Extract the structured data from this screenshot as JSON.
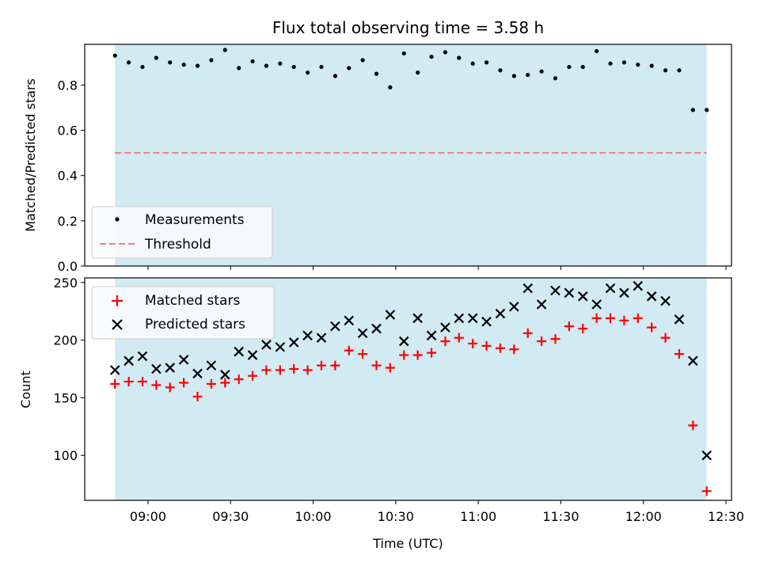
{
  "chart_data": [
    {
      "type": "scatter",
      "title": "Flux total observing time = 3.58 h",
      "xlabel": "",
      "ylabel": "Matched/Predicted stars",
      "ylim": [
        0,
        0.98
      ],
      "yticks": [
        "0.0",
        "0.2",
        "0.4",
        "0.6",
        "0.8"
      ],
      "xlim_minutes": [
        517,
        752
      ],
      "x": [
        "08:48",
        "08:53",
        "08:58",
        "09:03",
        "09:08",
        "09:13",
        "09:18",
        "09:23",
        "09:28",
        "09:33",
        "09:38",
        "09:43",
        "09:48",
        "09:53",
        "09:58",
        "10:03",
        "10:08",
        "10:13",
        "10:18",
        "10:23",
        "10:28",
        "10:33",
        "10:38",
        "10:43",
        "10:48",
        "10:53",
        "10:58",
        "11:03",
        "11:08",
        "11:13",
        "11:18",
        "11:23",
        "11:28",
        "11:33",
        "11:38",
        "11:43",
        "11:48",
        "11:53",
        "11:58",
        "12:03",
        "12:08",
        "12:13",
        "12:18",
        "12:23"
      ],
      "series": [
        {
          "name": "Measurements",
          "color": "#000000",
          "values": [
            0.93,
            0.9,
            0.88,
            0.92,
            0.9,
            0.89,
            0.885,
            0.91,
            0.955,
            0.875,
            0.905,
            0.885,
            0.895,
            0.88,
            0.855,
            0.88,
            0.84,
            0.875,
            0.91,
            0.85,
            0.79,
            0.94,
            0.855,
            0.925,
            0.945,
            0.92,
            0.895,
            0.9,
            0.865,
            0.84,
            0.845,
            0.86,
            0.83,
            0.88,
            0.88,
            0.95,
            0.895,
            0.9,
            0.89,
            0.885,
            0.865,
            0.865,
            0.69,
            0.69
          ]
        },
        {
          "name": "Threshold",
          "color": "#f08080",
          "style": "dashed",
          "values": [
            0.5,
            0.5
          ]
        }
      ],
      "shaded_region": [
        "08:48",
        "12:23"
      ],
      "legend_position": "lower-left",
      "legend_entries": [
        "Measurements",
        "Threshold"
      ]
    },
    {
      "type": "scatter",
      "title": "",
      "xlabel": "Time (UTC)",
      "ylabel": "Count",
      "ylim": [
        61,
        254
      ],
      "yticks": [
        "100",
        "150",
        "200",
        "250"
      ],
      "xlim_minutes": [
        517,
        752
      ],
      "xticks": [
        "09:00",
        "09:30",
        "10:00",
        "10:30",
        "11:00",
        "11:30",
        "12:00",
        "12:30"
      ],
      "x": [
        "08:48",
        "08:53",
        "08:58",
        "09:03",
        "09:08",
        "09:13",
        "09:18",
        "09:23",
        "09:28",
        "09:33",
        "09:38",
        "09:43",
        "09:48",
        "09:53",
        "09:58",
        "10:03",
        "10:08",
        "10:13",
        "10:18",
        "10:23",
        "10:28",
        "10:33",
        "10:38",
        "10:43",
        "10:48",
        "10:53",
        "10:58",
        "11:03",
        "11:08",
        "11:13",
        "11:18",
        "11:23",
        "11:28",
        "11:33",
        "11:38",
        "11:43",
        "11:48",
        "11:53",
        "11:58",
        "12:03",
        "12:08",
        "12:13",
        "12:18",
        "12:23"
      ],
      "series": [
        {
          "name": "Matched stars",
          "color": "#ff0000",
          "marker": "plus",
          "values": [
            162,
            164,
            164,
            161,
            159,
            163,
            151,
            162,
            163,
            166,
            169,
            174,
            174,
            175,
            174,
            178,
            178,
            191,
            188,
            178,
            176,
            187,
            187,
            189,
            199,
            202,
            197,
            195,
            193,
            192,
            206,
            199,
            201,
            212,
            210,
            219,
            219,
            217,
            219,
            211,
            202,
            188,
            126,
            69
          ]
        },
        {
          "name": "Predicted stars",
          "color": "#000000",
          "marker": "x",
          "values": [
            174,
            182,
            186,
            175,
            176,
            183,
            171,
            178,
            170,
            190,
            187,
            196,
            194,
            198,
            204,
            202,
            212,
            217,
            206,
            210,
            222,
            199,
            219,
            204,
            211,
            219,
            219,
            216,
            223,
            229,
            245,
            231,
            243,
            241,
            238,
            231,
            245,
            241,
            247,
            238,
            234,
            218,
            182,
            100
          ]
        }
      ],
      "shaded_region": [
        "08:48",
        "12:23"
      ],
      "legend_position": "upper-left",
      "legend_entries": [
        "Matched stars",
        "Predicted stars"
      ]
    }
  ]
}
